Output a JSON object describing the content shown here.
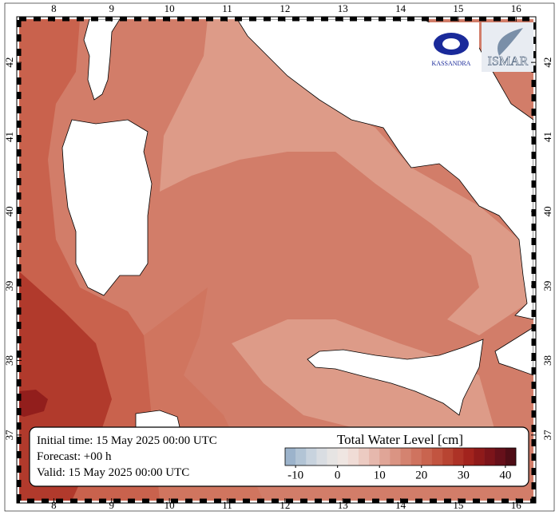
{
  "map": {
    "xlim": [
      7.4,
      16.3
    ],
    "ylim": [
      36.12,
      42.58
    ],
    "xticks": [
      8,
      9,
      10,
      11,
      12,
      13,
      14,
      15,
      16
    ],
    "yticks": [
      37,
      38,
      39,
      40,
      41,
      42
    ]
  },
  "info": [
    "Initial time: 15 May 2025 00:00 UTC",
    "Forecast: +00 h",
    "Valid: 15 May 2025 00:00 UTC"
  ],
  "colorbar": {
    "title": "Total Water Level [cm]",
    "lim": [
      -12.5,
      42.5
    ],
    "ticks": [
      -10,
      0,
      10,
      20,
      30,
      40
    ],
    "colors": [
      "#9cb3cb",
      "#b2c4d5",
      "#c8d3de",
      "#d9dde2",
      "#e6e4e3",
      "#efe6e2",
      "#f0dcd6",
      "#eccbc2",
      "#e6b8ad",
      "#e0a597",
      "#da9483",
      "#d48370",
      "#cf735f",
      "#c9644f",
      "#c25440",
      "#b84432",
      "#ad3226",
      "#a2231d",
      "#8f1a1a",
      "#7c141a",
      "#66101a",
      "#4f0d16"
    ]
  },
  "logos": [
    "KASSANDRA",
    "ISMAR"
  ]
}
